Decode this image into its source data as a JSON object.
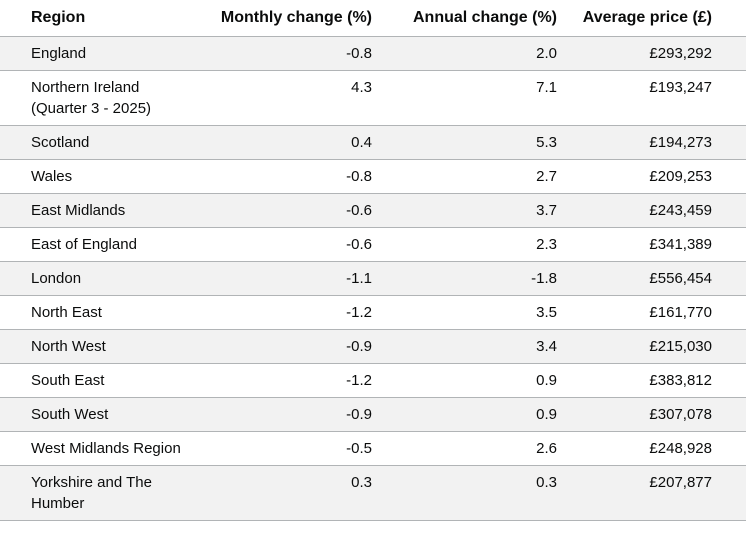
{
  "table": {
    "header": [
      "Region",
      "Monthly change (%)",
      "Annual change (%)",
      "Average price (£)"
    ],
    "rows": [
      [
        "England",
        "-0.8",
        "2.0",
        "£293,292"
      ],
      [
        "Northern Ireland (Quarter 3 - 2025)",
        "4.3",
        "7.1",
        "£193,247"
      ],
      [
        "Scotland",
        "0.4",
        "5.3",
        "£194,273"
      ],
      [
        "Wales",
        "-0.8",
        "2.7",
        "£209,253"
      ],
      [
        "East Midlands",
        "-0.6",
        "3.7",
        "£243,459"
      ],
      [
        "East of England",
        "-0.6",
        "2.3",
        "£341,389"
      ],
      [
        "London",
        "-1.1",
        "-1.8",
        "£556,454"
      ],
      [
        "North East",
        "-1.2",
        "3.5",
        "£161,770"
      ],
      [
        "North West",
        "-0.9",
        "3.4",
        "£215,030"
      ],
      [
        "South East",
        "-1.2",
        "0.9",
        "£383,812"
      ],
      [
        "South West",
        "-0.9",
        "0.9",
        "£307,078"
      ],
      [
        "West Midlands Region",
        "-0.5",
        "2.6",
        "£248,928"
      ],
      [
        "Yorkshire and The Humber",
        "0.3",
        "0.3",
        "£207,877"
      ]
    ]
  }
}
